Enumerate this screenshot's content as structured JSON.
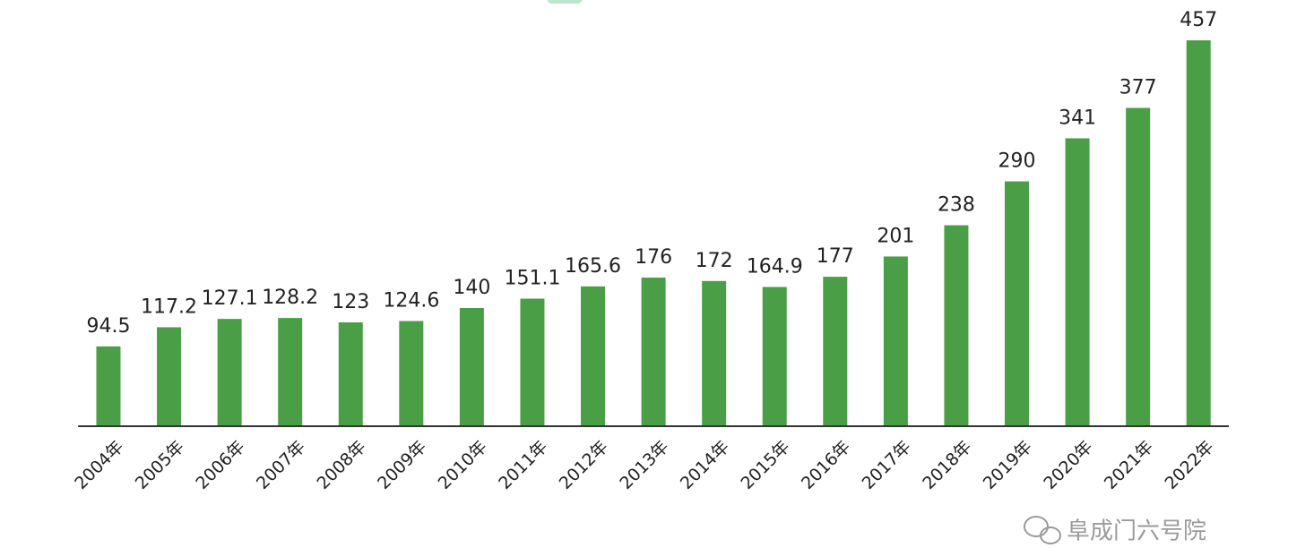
{
  "chart_data": {
    "type": "bar",
    "categories": [
      "2004年",
      "2005年",
      "2006年",
      "2007年",
      "2008年",
      "2009年",
      "2010年",
      "2011年",
      "2012年",
      "2013年",
      "2014年",
      "2015年",
      "2016年",
      "2017年",
      "2018年",
      "2019年",
      "2020年",
      "2021年",
      "2022年"
    ],
    "values": [
      94.5,
      117.2,
      127.1,
      128.2,
      123,
      124.6,
      140,
      151.1,
      165.6,
      176,
      172,
      164.9,
      177,
      201,
      238,
      290,
      341,
      377,
      457
    ],
    "color": "#4a9e45",
    "ylim": [
      0,
      500
    ],
    "watermark": "阜成门六号院"
  }
}
